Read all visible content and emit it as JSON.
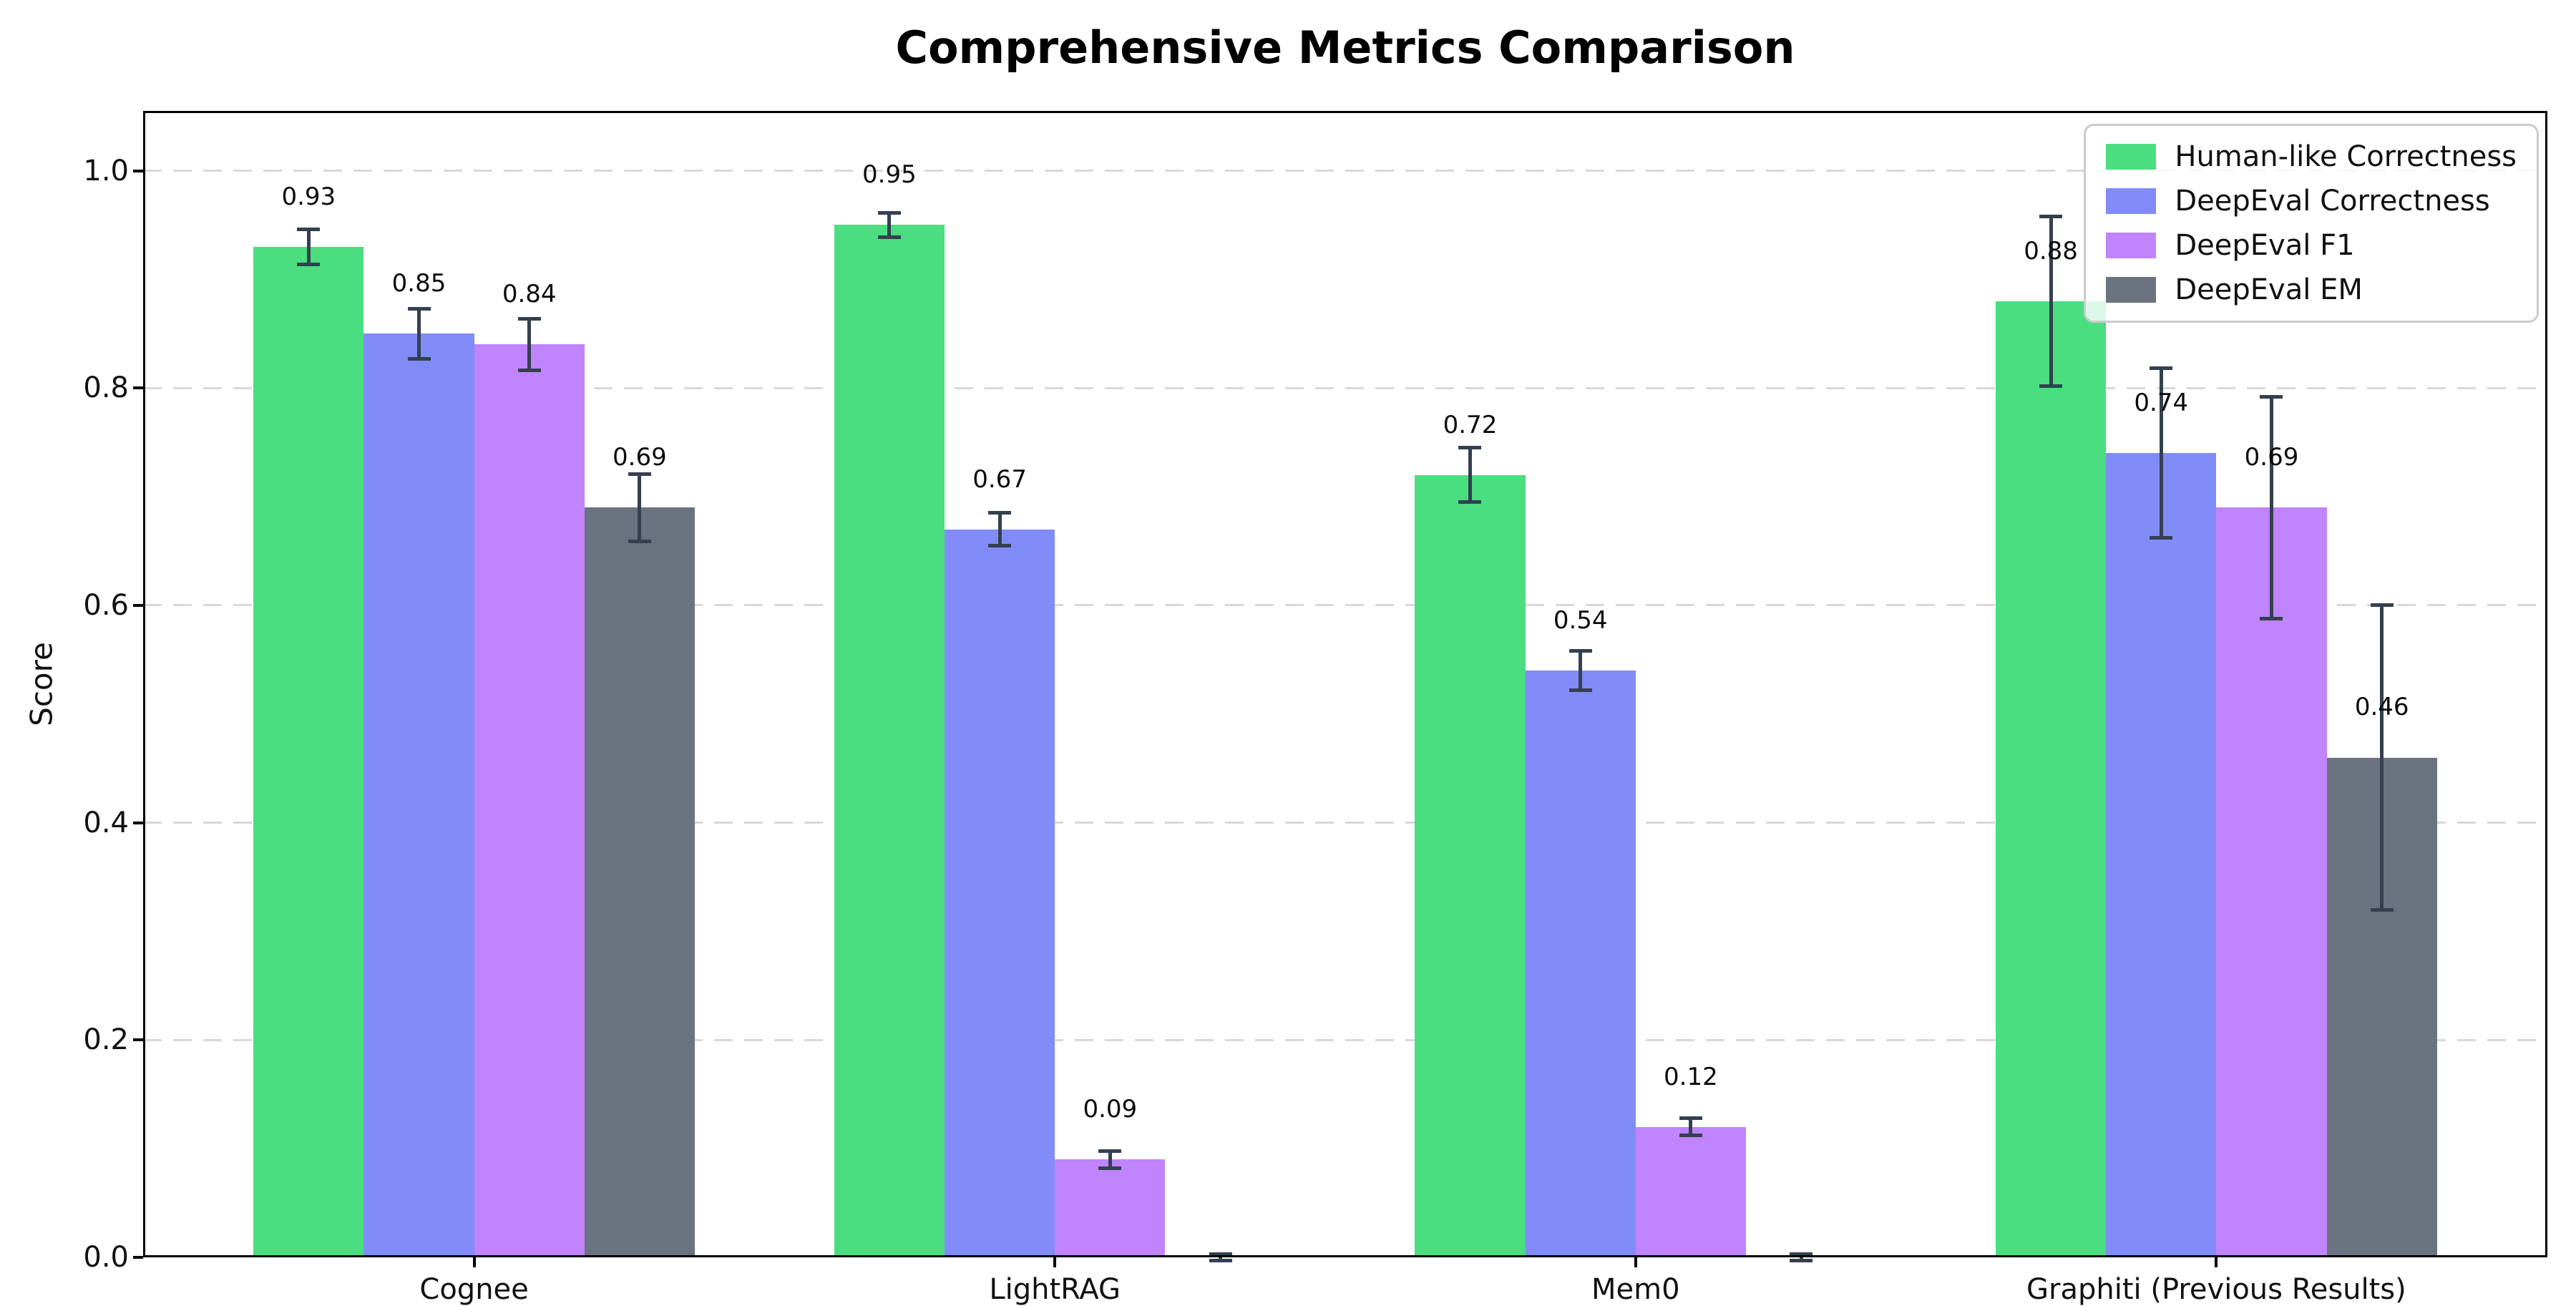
{
  "chart_data": {
    "type": "bar",
    "title": "Comprehensive Metrics Comparison",
    "ylabel": "Score",
    "xlabel": "",
    "categories": [
      "Cognee",
      "LightRAG",
      "Mem0",
      "Graphiti (Previous Results)"
    ],
    "series": [
      {
        "name": "Human-like Correctness",
        "color": "#4ade80",
        "values": [
          0.93,
          0.95,
          0.72,
          0.88
        ],
        "errors": [
          0.016,
          0.011,
          0.025,
          0.078
        ],
        "labels": [
          "0.93",
          "0.95",
          "0.72",
          "0.88"
        ]
      },
      {
        "name": "DeepEval Correctness",
        "color": "#818cf8",
        "values": [
          0.85,
          0.67,
          0.54,
          0.74
        ],
        "errors": [
          0.023,
          0.015,
          0.018,
          0.078
        ],
        "labels": [
          "0.85",
          "0.67",
          "0.54",
          "0.74"
        ]
      },
      {
        "name": "DeepEval F1",
        "color": "#c084fc",
        "values": [
          0.84,
          0.09,
          0.12,
          0.69
        ],
        "errors": [
          0.024,
          0.008,
          0.008,
          0.102
        ],
        "labels": [
          "0.84",
          "0.09",
          "0.12",
          "0.69"
        ]
      },
      {
        "name": "DeepEval EM",
        "color": "#6b7280",
        "values": [
          0.69,
          0.0,
          0.0,
          0.46
        ],
        "errors": [
          0.031,
          0.003,
          0.003,
          0.14
        ],
        "labels": [
          "0.69",
          null,
          null,
          "0.46"
        ]
      }
    ],
    "yticks": [
      "0.0",
      "0.2",
      "0.4",
      "0.6",
      "0.8",
      "1.0"
    ],
    "ylim": [
      0,
      1.055
    ],
    "grid": "horizontal-dashed",
    "grid_color": "#d9d9d9",
    "error_bar_color": "#344050",
    "legend_position": "upper-right",
    "axis_color": "#000000",
    "background_color": "#ffffff"
  }
}
